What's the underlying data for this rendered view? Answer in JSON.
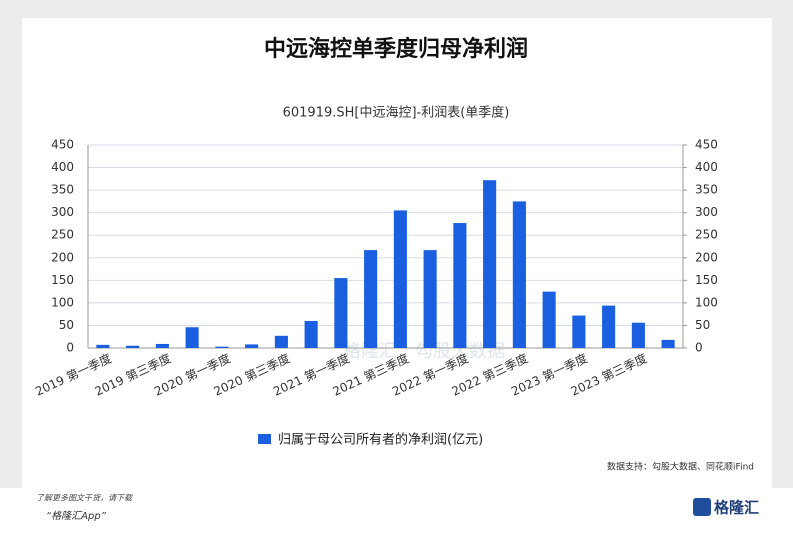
{
  "chart_data": {
    "type": "bar",
    "title": "中远海控单季度归母净利润",
    "subtitle": "601919.SH[中远海控]-利润表(单季度)",
    "categories": [
      "2019 第一季度",
      null,
      "2019 第三季度",
      null,
      "2020 第一季度",
      null,
      "2020 第三季度",
      null,
      "2021 第一季度",
      null,
      "2021 第三季度",
      null,
      "2022 第一季度",
      null,
      "2022 第三季度",
      null,
      "2023 第一季度",
      null,
      "2023 第三季度",
      null
    ],
    "series": [
      {
        "name": "归属于母公司所有者的净利润(亿元)",
        "color": "#1a5fe0",
        "values": [
          7,
          5,
          9,
          46,
          3,
          8,
          27,
          60,
          155,
          217,
          305,
          217,
          277,
          372,
          325,
          125,
          72,
          94,
          56,
          18
        ]
      }
    ],
    "ylim": [
      0,
      450
    ],
    "yticks": [
      0,
      50,
      100,
      150,
      200,
      250,
      300,
      350,
      400,
      450
    ],
    "y2lim": [
      0,
      450
    ],
    "y2ticks": [
      0,
      50,
      100,
      150,
      200,
      250,
      300,
      350,
      400,
      450
    ],
    "grid": true,
    "legend": "bottom",
    "source": "数据支持：勾股大数据、同花顺iFind",
    "watermark": [
      "格隆汇",
      "勾股大数据"
    ],
    "footer": {
      "line1": "了解更多图文干货，请下载",
      "line2": "“格隆汇App”",
      "logo": "格隆汇"
    }
  }
}
